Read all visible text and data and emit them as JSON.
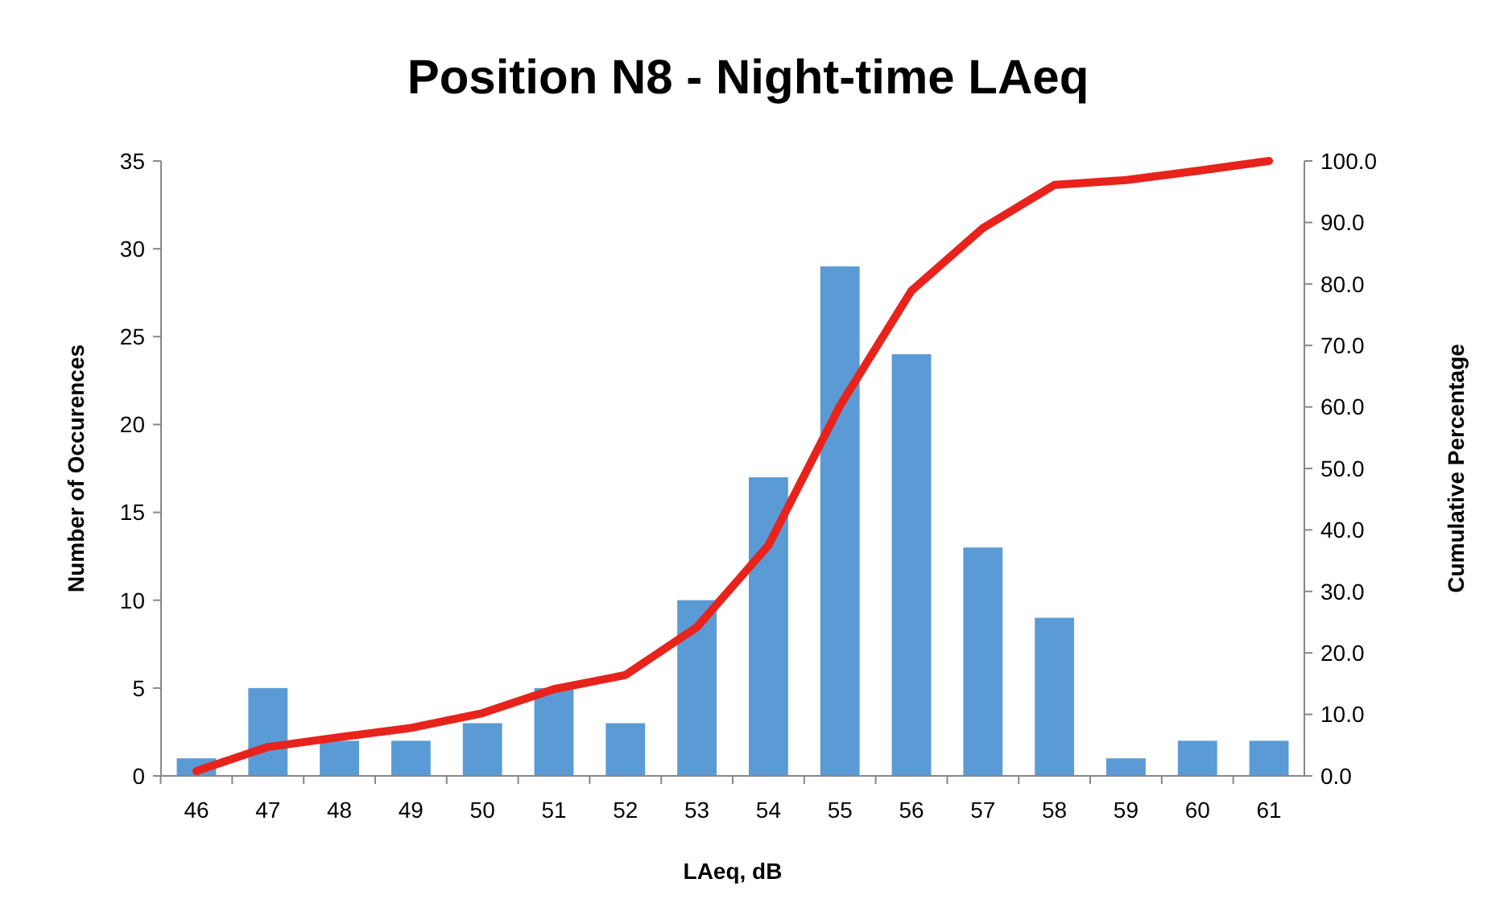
{
  "chart_data": {
    "type": "bar",
    "title": "Position N8 - Night-time LAeq",
    "xlabel": "LAeq, dB",
    "ylabel": "Number of Occurences",
    "y2label": "Cumulative Percentage",
    "categories": [
      "46",
      "47",
      "48",
      "49",
      "50",
      "51",
      "52",
      "53",
      "54",
      "55",
      "56",
      "57",
      "58",
      "59",
      "60",
      "61"
    ],
    "series": [
      {
        "color": "#5b9bd5",
        "values": [
          1,
          5,
          2,
          2,
          3,
          5,
          3,
          10,
          17,
          29,
          24,
          13,
          9,
          1,
          2,
          2
        ]
      },
      {
        "type": "line",
        "axis": "y2",
        "color": "#e8231c",
        "values": [
          0.8,
          4.7,
          6.3,
          7.8,
          10.2,
          14.1,
          16.4,
          24.2,
          37.5,
          60.2,
          78.9,
          89.1,
          96.1,
          96.9,
          98.4,
          100
        ]
      }
    ],
    "ylim": [
      0,
      35
    ],
    "yticks": [
      0,
      5,
      10,
      15,
      20,
      25,
      30,
      35
    ],
    "y2lim": [
      0,
      100
    ],
    "y2ticks": [
      {
        "value": 0,
        "label": "0.0"
      },
      {
        "value": 10,
        "label": "10.0"
      },
      {
        "value": 20,
        "label": "20.0"
      },
      {
        "value": 30,
        "label": "30.0"
      },
      {
        "value": 40,
        "label": "40.0"
      },
      {
        "value": 50,
        "label": "50.0"
      },
      {
        "value": 60,
        "label": "60.0"
      },
      {
        "value": 70,
        "label": "70.0"
      },
      {
        "value": 80,
        "label": "80.0"
      },
      {
        "value": 90,
        "label": "90.0"
      },
      {
        "value": 100,
        "label": "100.0"
      }
    ],
    "grid": false,
    "marker": "none"
  }
}
